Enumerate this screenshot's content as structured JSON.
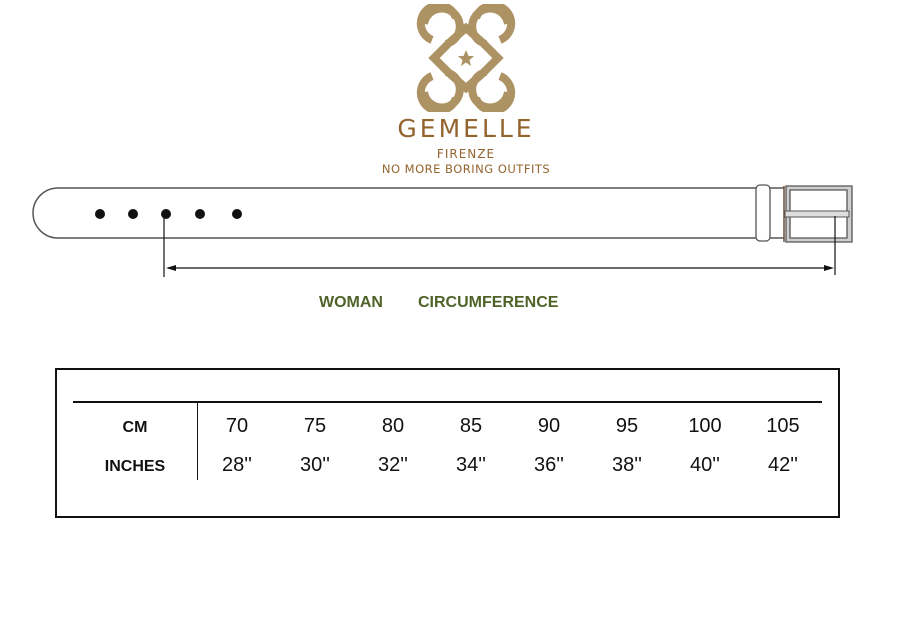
{
  "brand": {
    "name": "GEMELLE",
    "city": "FIRENZE",
    "tagline": "NO MORE BORING OUTFITS",
    "color": "#93642e",
    "emblem_color": "#ad9263"
  },
  "diagram": {
    "captions": [
      "WOMAN",
      "CIRCUMFERENCE"
    ],
    "caption_color": "#4f6228",
    "holes": 5
  },
  "size_table": {
    "rows": [
      {
        "label": "CM",
        "values": [
          "70",
          "75",
          "80",
          "85",
          "90",
          "95",
          "100",
          "105"
        ]
      },
      {
        "label": "INCHES",
        "values": [
          "28''",
          "30''",
          "32''",
          "34''",
          "36''",
          "38''",
          "40''",
          "42''"
        ]
      }
    ]
  }
}
